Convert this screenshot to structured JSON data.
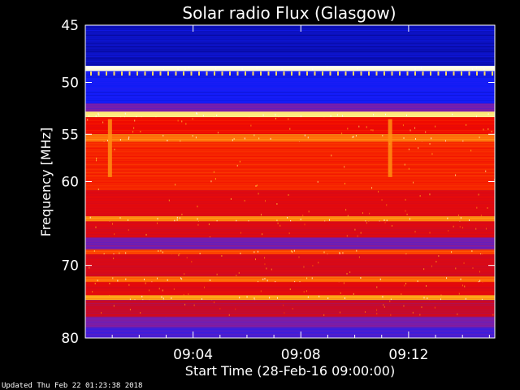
{
  "chart_data": {
    "type": "heatmap",
    "title": "Solar radio Flux (Glasgow)",
    "xlabel": "Start Time (28-Feb-16 09:00:00)",
    "ylabel": "Frequency [MHz]",
    "x_unit": "minutes",
    "x_range": [
      0,
      15.2
    ],
    "y_range": [
      45,
      80
    ],
    "y_scale": "log",
    "x_ticks": [
      {
        "value": 4,
        "label": "09:04"
      },
      {
        "value": 8,
        "label": "09:08"
      },
      {
        "value": 12,
        "label": "09:12"
      }
    ],
    "y_ticks": [
      {
        "value": 45,
        "label": "45"
      },
      {
        "value": 50,
        "label": "50"
      },
      {
        "value": 55,
        "label": "55"
      },
      {
        "value": 60,
        "label": "60"
      },
      {
        "value": 70,
        "label": "70"
      },
      {
        "value": 80,
        "label": "80"
      }
    ],
    "bands": [
      {
        "from": 45.0,
        "to": 48.5,
        "level": 0.08
      },
      {
        "from": 48.5,
        "to": 49.0,
        "level": 0.98
      },
      {
        "from": 49.0,
        "to": 52.0,
        "level": 0.14
      },
      {
        "from": 52.0,
        "to": 52.8,
        "level": 0.3
      },
      {
        "from": 52.8,
        "to": 53.3,
        "level": 0.9
      },
      {
        "from": 53.3,
        "to": 55.0,
        "level": 0.55
      },
      {
        "from": 55.0,
        "to": 55.8,
        "level": 0.72
      },
      {
        "from": 55.8,
        "to": 61.0,
        "level": 0.6
      },
      {
        "from": 61.0,
        "to": 64.0,
        "level": 0.5
      },
      {
        "from": 64.0,
        "to": 64.6,
        "level": 0.75
      },
      {
        "from": 64.6,
        "to": 66.5,
        "level": 0.48
      },
      {
        "from": 66.5,
        "to": 68.0,
        "level": 0.3
      },
      {
        "from": 68.0,
        "to": 68.6,
        "level": 0.65
      },
      {
        "from": 68.6,
        "to": 71.5,
        "level": 0.47
      },
      {
        "from": 71.5,
        "to": 72.2,
        "level": 0.72
      },
      {
        "from": 72.2,
        "to": 74.0,
        "level": 0.5
      },
      {
        "from": 74.0,
        "to": 74.6,
        "level": 0.8
      },
      {
        "from": 74.6,
        "to": 77.0,
        "level": 0.42
      },
      {
        "from": 77.0,
        "to": 78.5,
        "level": 0.3
      },
      {
        "from": 78.5,
        "to": 80.0,
        "level": 0.22
      }
    ],
    "grid": false,
    "colormap": "rainbow"
  },
  "footer": {
    "updated": "Updated Thu Feb 22 01:23:38 2018"
  }
}
